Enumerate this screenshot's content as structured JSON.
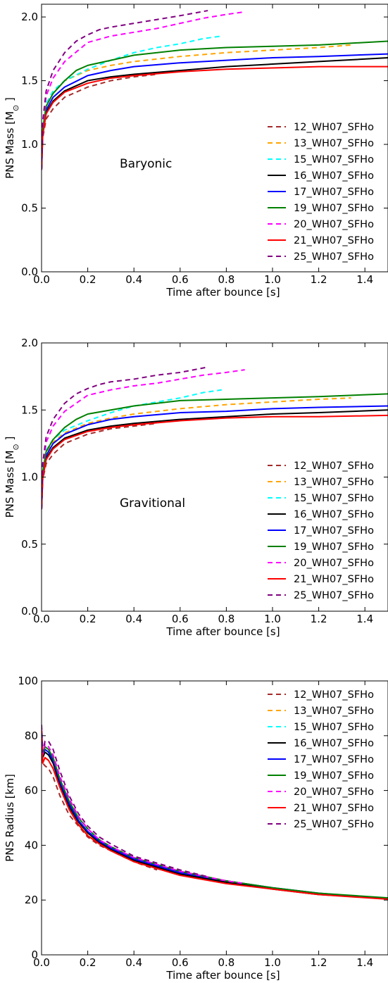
{
  "series_styles": [
    {
      "name": "12_WH07_SFHo",
      "color": "#a52a2a",
      "dash": true
    },
    {
      "name": "13_WH07_SFHo",
      "color": "#ffa500",
      "dash": true
    },
    {
      "name": "15_WH07_SFHo",
      "color": "#00ffff",
      "dash": true
    },
    {
      "name": "16_WH07_SFHo",
      "color": "#000000",
      "dash": false
    },
    {
      "name": "17_WH07_SFHo",
      "color": "#0000ff",
      "dash": false
    },
    {
      "name": "19_WH07_SFHo",
      "color": "#008000",
      "dash": false
    },
    {
      "name": "20_WH07_SFHo",
      "color": "#ff00ff",
      "dash": true
    },
    {
      "name": "21_WH07_SFHo",
      "color": "#ff0000",
      "dash": false
    },
    {
      "name": "25_WH07_SFHo",
      "color": "#800080",
      "dash": true
    }
  ],
  "chart_data": [
    {
      "type": "line",
      "annotation": "Baryonic",
      "xlabel": "Time after bounce [s]",
      "ylabel": "PNS Mass [M",
      "ylabel_sub": "⊙",
      "ylabel_end": " ]",
      "xlim": [
        0,
        1.5
      ],
      "ylim": [
        0,
        2.1
      ],
      "xticks": [
        "0.0",
        "0.2",
        "0.4",
        "0.6",
        "0.8",
        "1.0",
        "1.2",
        "1.4"
      ],
      "yticks": [
        "0.0",
        "0.5",
        "1.0",
        "1.5",
        "2.0"
      ],
      "legend_position": "lower-right",
      "series": [
        {
          "name": "12_WH07_SFHo",
          "x": [
            0,
            0.005,
            0.02,
            0.05,
            0.1,
            0.2,
            0.3,
            0.4,
            0.5
          ],
          "y": [
            0.8,
            1.05,
            1.2,
            1.28,
            1.37,
            1.45,
            1.5,
            1.53,
            1.55
          ]
        },
        {
          "name": "13_WH07_SFHo",
          "x": [
            0,
            0.005,
            0.02,
            0.05,
            0.1,
            0.2,
            0.3,
            0.4,
            0.6,
            0.8,
            1.0,
            1.2,
            1.34
          ],
          "y": [
            0.8,
            1.1,
            1.3,
            1.4,
            1.5,
            1.58,
            1.62,
            1.65,
            1.69,
            1.72,
            1.74,
            1.76,
            1.78
          ]
        },
        {
          "name": "15_WH07_SFHo",
          "x": [
            0,
            0.005,
            0.02,
            0.05,
            0.1,
            0.2,
            0.3,
            0.4,
            0.5,
            0.6,
            0.7,
            0.78
          ],
          "y": [
            0.8,
            1.12,
            1.32,
            1.42,
            1.5,
            1.59,
            1.66,
            1.72,
            1.76,
            1.79,
            1.83,
            1.85
          ]
        },
        {
          "name": "16_WH07_SFHo",
          "x": [
            0,
            0.005,
            0.02,
            0.05,
            0.1,
            0.2,
            0.3,
            0.4,
            0.6,
            0.8,
            1.0,
            1.2,
            1.5
          ],
          "y": [
            0.8,
            1.08,
            1.25,
            1.34,
            1.42,
            1.5,
            1.53,
            1.55,
            1.58,
            1.61,
            1.63,
            1.65,
            1.68
          ]
        },
        {
          "name": "17_WH07_SFHo",
          "x": [
            0,
            0.005,
            0.02,
            0.05,
            0.1,
            0.2,
            0.3,
            0.4,
            0.6,
            0.8,
            1.0,
            1.2,
            1.5
          ],
          "y": [
            0.8,
            1.1,
            1.27,
            1.37,
            1.45,
            1.54,
            1.58,
            1.61,
            1.64,
            1.66,
            1.68,
            1.69,
            1.71
          ]
        },
        {
          "name": "19_WH07_SFHo",
          "x": [
            0,
            0.005,
            0.02,
            0.05,
            0.1,
            0.15,
            0.2,
            0.3,
            0.4,
            0.6,
            0.8,
            1.0,
            1.2,
            1.5
          ],
          "y": [
            0.8,
            1.12,
            1.3,
            1.4,
            1.5,
            1.58,
            1.62,
            1.66,
            1.7,
            1.74,
            1.76,
            1.77,
            1.78,
            1.81
          ]
        },
        {
          "name": "20_WH07_SFHo",
          "x": [
            0,
            0.005,
            0.02,
            0.05,
            0.1,
            0.2,
            0.3,
            0.4,
            0.5,
            0.6,
            0.7,
            0.8,
            0.88
          ],
          "y": [
            0.8,
            1.15,
            1.38,
            1.52,
            1.65,
            1.8,
            1.85,
            1.88,
            1.91,
            1.95,
            1.99,
            2.02,
            2.04
          ]
        },
        {
          "name": "21_WH07_SFHo",
          "x": [
            0,
            0.005,
            0.02,
            0.05,
            0.1,
            0.2,
            0.3,
            0.4,
            0.6,
            0.8,
            1.0,
            1.2,
            1.5
          ],
          "y": [
            0.8,
            1.07,
            1.24,
            1.33,
            1.41,
            1.48,
            1.52,
            1.54,
            1.57,
            1.59,
            1.6,
            1.61,
            1.61
          ]
        },
        {
          "name": "25_WH07_SFHo",
          "x": [
            0,
            0.005,
            0.02,
            0.05,
            0.1,
            0.15,
            0.2,
            0.25,
            0.3,
            0.4,
            0.5,
            0.6,
            0.72
          ],
          "y": [
            0.8,
            1.18,
            1.42,
            1.58,
            1.72,
            1.81,
            1.86,
            1.9,
            1.92,
            1.95,
            1.98,
            2.01,
            2.05
          ]
        }
      ]
    },
    {
      "type": "line",
      "annotation": "Gravitional",
      "xlabel": "Time after bounce [s]",
      "ylabel": "PNS Mass [M",
      "ylabel_sub": "⊙",
      "ylabel_end": " ]",
      "xlim": [
        0,
        1.5
      ],
      "ylim": [
        0,
        2.0
      ],
      "xticks": [
        "0.0",
        "0.2",
        "0.4",
        "0.6",
        "0.8",
        "1.0",
        "1.2",
        "1.4"
      ],
      "yticks": [
        "0.0",
        "0.5",
        "1.0",
        "1.5",
        "2.0"
      ],
      "legend_position": "lower-right",
      "series": [
        {
          "name": "12_WH07_SFHo",
          "x": [
            0,
            0.005,
            0.02,
            0.05,
            0.1,
            0.2,
            0.3,
            0.4,
            0.5
          ],
          "y": [
            0.76,
            0.98,
            1.1,
            1.17,
            1.25,
            1.32,
            1.36,
            1.38,
            1.4
          ]
        },
        {
          "name": "13_WH07_SFHo",
          "x": [
            0,
            0.005,
            0.02,
            0.05,
            0.1,
            0.2,
            0.3,
            0.4,
            0.6,
            0.8,
            1.0,
            1.2,
            1.34
          ],
          "y": [
            0.76,
            1.02,
            1.18,
            1.26,
            1.33,
            1.4,
            1.44,
            1.47,
            1.51,
            1.54,
            1.56,
            1.58,
            1.59
          ]
        },
        {
          "name": "15_WH07_SFHo",
          "x": [
            0,
            0.005,
            0.02,
            0.05,
            0.1,
            0.2,
            0.3,
            0.4,
            0.5,
            0.6,
            0.7,
            0.78
          ],
          "y": [
            0.76,
            1.05,
            1.2,
            1.28,
            1.35,
            1.42,
            1.48,
            1.53,
            1.56,
            1.59,
            1.63,
            1.65
          ]
        },
        {
          "name": "16_WH07_SFHo",
          "x": [
            0,
            0.005,
            0.02,
            0.05,
            0.1,
            0.2,
            0.3,
            0.4,
            0.6,
            0.8,
            1.0,
            1.2,
            1.5
          ],
          "y": [
            0.76,
            1.0,
            1.14,
            1.22,
            1.29,
            1.35,
            1.38,
            1.4,
            1.43,
            1.45,
            1.47,
            1.48,
            1.5
          ]
        },
        {
          "name": "17_WH07_SFHo",
          "x": [
            0,
            0.005,
            0.02,
            0.05,
            0.1,
            0.2,
            0.3,
            0.4,
            0.6,
            0.8,
            1.0,
            1.2,
            1.5
          ],
          "y": [
            0.76,
            1.02,
            1.16,
            1.25,
            1.32,
            1.39,
            1.43,
            1.45,
            1.48,
            1.49,
            1.51,
            1.52,
            1.53
          ]
        },
        {
          "name": "19_WH07_SFHo",
          "x": [
            0,
            0.005,
            0.02,
            0.05,
            0.1,
            0.15,
            0.2,
            0.3,
            0.4,
            0.6,
            0.8,
            1.0,
            1.2,
            1.5
          ],
          "y": [
            0.76,
            1.04,
            1.19,
            1.28,
            1.37,
            1.43,
            1.47,
            1.5,
            1.53,
            1.57,
            1.58,
            1.59,
            1.6,
            1.62
          ]
        },
        {
          "name": "20_WH07_SFHo",
          "x": [
            0,
            0.005,
            0.02,
            0.05,
            0.1,
            0.2,
            0.3,
            0.4,
            0.5,
            0.6,
            0.7,
            0.8,
            0.88
          ],
          "y": [
            0.76,
            1.08,
            1.26,
            1.38,
            1.49,
            1.61,
            1.65,
            1.68,
            1.7,
            1.73,
            1.76,
            1.78,
            1.8
          ]
        },
        {
          "name": "21_WH07_SFHo",
          "x": [
            0,
            0.005,
            0.02,
            0.05,
            0.1,
            0.2,
            0.3,
            0.4,
            0.6,
            0.8,
            1.0,
            1.2,
            1.5
          ],
          "y": [
            0.76,
            0.99,
            1.13,
            1.21,
            1.28,
            1.34,
            1.37,
            1.39,
            1.42,
            1.44,
            1.45,
            1.45,
            1.46
          ]
        },
        {
          "name": "25_WH07_SFHo",
          "x": [
            0,
            0.005,
            0.02,
            0.05,
            0.1,
            0.15,
            0.2,
            0.25,
            0.3,
            0.4,
            0.5,
            0.6,
            0.72
          ],
          "y": [
            0.76,
            1.1,
            1.3,
            1.43,
            1.55,
            1.62,
            1.66,
            1.69,
            1.71,
            1.73,
            1.76,
            1.78,
            1.82
          ]
        }
      ]
    },
    {
      "type": "line",
      "xlabel": "Time after bounce [s]",
      "ylabel": "PNS Radius [km]",
      "xlim": [
        0,
        1.5
      ],
      "ylim": [
        0,
        100
      ],
      "xticks": [
        "0.0",
        "0.2",
        "0.4",
        "0.6",
        "0.8",
        "1.0",
        "1.2",
        "1.4"
      ],
      "yticks": [
        "0",
        "20",
        "40",
        "60",
        "80",
        "100"
      ],
      "legend_position": "top-right",
      "series": [
        {
          "name": "12_WH07_SFHo",
          "x": [
            0,
            0.005,
            0.015,
            0.03,
            0.05,
            0.08,
            0.12,
            0.16,
            0.2,
            0.25,
            0.3,
            0.4,
            0.5
          ],
          "y": [
            82,
            70,
            69,
            68,
            65,
            58,
            51,
            47,
            43,
            40,
            38,
            34,
            31
          ]
        },
        {
          "name": "13_WH07_SFHo",
          "x": [
            0,
            0.005,
            0.015,
            0.03,
            0.05,
            0.08,
            0.12,
            0.16,
            0.2,
            0.25,
            0.3,
            0.4,
            0.6,
            0.8,
            1.0,
            1.2,
            1.34
          ],
          "y": [
            82,
            71,
            72,
            71,
            68,
            61,
            53,
            48,
            44,
            41,
            38.5,
            34.5,
            29.5,
            26.5,
            24,
            22.5,
            21.5
          ]
        },
        {
          "name": "15_WH07_SFHo",
          "x": [
            0,
            0.005,
            0.015,
            0.03,
            0.05,
            0.08,
            0.12,
            0.16,
            0.2,
            0.25,
            0.3,
            0.4,
            0.6,
            0.78
          ],
          "y": [
            82,
            72,
            74,
            73,
            70,
            63,
            55,
            49,
            45,
            41.5,
            39,
            35,
            30,
            27
          ]
        },
        {
          "name": "16_WH07_SFHo",
          "x": [
            0,
            0.005,
            0.015,
            0.03,
            0.05,
            0.08,
            0.12,
            0.16,
            0.2,
            0.25,
            0.3,
            0.4,
            0.6,
            0.8,
            1.0,
            1.2,
            1.5
          ],
          "y": [
            82,
            72,
            74,
            73,
            70,
            62,
            54,
            48.5,
            44.5,
            41,
            38.5,
            34.5,
            29.5,
            26.5,
            24,
            22,
            20.5
          ]
        },
        {
          "name": "17_WH07_SFHo",
          "x": [
            0,
            0.005,
            0.015,
            0.03,
            0.05,
            0.08,
            0.12,
            0.16,
            0.2,
            0.25,
            0.3,
            0.4,
            0.6,
            0.8,
            1.0,
            1.2,
            1.5
          ],
          "y": [
            82,
            73,
            75,
            74,
            71,
            63,
            55,
            49,
            45,
            41.5,
            39,
            35,
            30,
            27,
            24.5,
            22.5,
            20.5
          ]
        },
        {
          "name": "19_WH07_SFHo",
          "x": [
            0,
            0.005,
            0.015,
            0.03,
            0.05,
            0.08,
            0.12,
            0.16,
            0.2,
            0.25,
            0.3,
            0.4,
            0.6,
            0.8,
            1.0,
            1.2,
            1.5
          ],
          "y": [
            82,
            73,
            76,
            75,
            72,
            64,
            56,
            50,
            46,
            42,
            39.5,
            35.5,
            30.5,
            27,
            24.5,
            22.5,
            20.8
          ]
        },
        {
          "name": "20_WH07_SFHo",
          "x": [
            0,
            0.005,
            0.015,
            0.03,
            0.05,
            0.08,
            0.12,
            0.16,
            0.2,
            0.25,
            0.3,
            0.4,
            0.6,
            0.8,
            0.88
          ],
          "y": [
            83,
            73,
            77,
            76,
            73,
            65,
            57,
            50.5,
            46,
            42,
            39.5,
            35.5,
            30.5,
            27,
            26
          ]
        },
        {
          "name": "21_WH07_SFHo",
          "x": [
            0,
            0.005,
            0.015,
            0.03,
            0.05,
            0.08,
            0.12,
            0.16,
            0.2,
            0.25,
            0.3,
            0.4,
            0.6,
            0.8,
            1.0,
            1.2,
            1.5
          ],
          "y": [
            82,
            70,
            72,
            71,
            68,
            61,
            53,
            47.5,
            43.5,
            40.5,
            38,
            34,
            29,
            26,
            24,
            22,
            20.3
          ]
        },
        {
          "name": "25_WH07_SFHo",
          "x": [
            0,
            0.005,
            0.015,
            0.03,
            0.05,
            0.08,
            0.12,
            0.16,
            0.2,
            0.25,
            0.3,
            0.4,
            0.6,
            0.72
          ],
          "y": [
            84,
            74,
            78,
            78,
            75,
            67,
            58,
            51.5,
            47,
            43,
            40.5,
            36,
            31,
            28.5
          ]
        }
      ]
    }
  ]
}
